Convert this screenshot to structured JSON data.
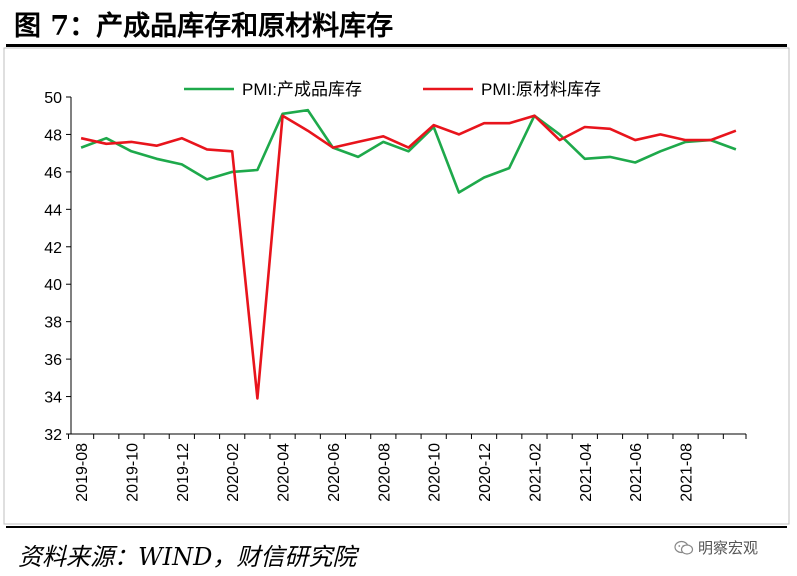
{
  "figure": {
    "title": "图 7：产成品库存和原材料库存",
    "source": "资料来源：WIND，财信研究院",
    "watermark": "明察宏观"
  },
  "chart_data": {
    "type": "line",
    "title": "",
    "xlabel": "",
    "ylabel": "",
    "ylim": [
      32,
      50
    ],
    "yticks": [
      32,
      34,
      36,
      38,
      40,
      42,
      44,
      46,
      48,
      50
    ],
    "x": [
      "2019-08",
      "2019-09",
      "2019-10",
      "2019-11",
      "2019-12",
      "2020-01",
      "2020-02",
      "2020-03",
      "2020-04",
      "2020-05",
      "2020-06",
      "2020-07",
      "2020-08",
      "2020-09",
      "2020-10",
      "2020-11",
      "2020-12",
      "2021-01",
      "2021-02",
      "2021-03",
      "2021-04",
      "2021-05",
      "2021-06",
      "2021-07",
      "2021-08",
      "2021-09",
      "2021-10"
    ],
    "xtick_labels": [
      "2019-08",
      "2019-10",
      "2019-12",
      "2020-02",
      "2020-04",
      "2020-06",
      "2020-08",
      "2020-10",
      "2020-12",
      "2021-02",
      "2021-04",
      "2021-06",
      "2021-08"
    ],
    "grid": false,
    "legend_position": "top",
    "series": [
      {
        "name": "PMI:产成品库存",
        "color": "#1ea94b",
        "values": [
          47.3,
          47.8,
          47.1,
          46.7,
          46.4,
          45.6,
          46.0,
          46.1,
          49.1,
          49.3,
          47.3,
          46.8,
          47.6,
          47.1,
          48.4,
          44.9,
          45.7,
          46.2,
          49.0,
          48.0,
          46.7,
          46.8,
          46.5,
          47.1,
          47.6,
          47.7,
          47.2
        ]
      },
      {
        "name": "PMI:原材料库存",
        "color": "#e8141c",
        "values": [
          47.8,
          47.5,
          47.6,
          47.4,
          47.8,
          47.2,
          47.1,
          33.9,
          49.0,
          48.2,
          47.3,
          47.6,
          47.9,
          47.3,
          48.5,
          48.0,
          48.6,
          48.6,
          49.0,
          47.7,
          48.4,
          48.3,
          47.7,
          48.0,
          47.7,
          47.7,
          48.2
        ]
      }
    ]
  }
}
